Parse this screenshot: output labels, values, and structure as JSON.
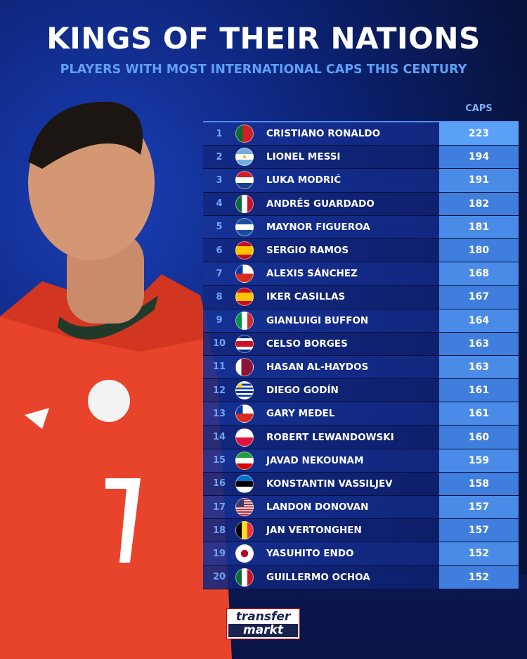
{
  "header": {
    "title": "KINGS OF THEIR NATIONS",
    "subtitle": "PLAYERS WITH MOST INTERNATIONAL CAPS THIS CENTURY"
  },
  "logo": {
    "line1": "transfer",
    "line2": "markt"
  },
  "colors": {
    "accent": "#5fa0f5",
    "caps_cell": "#4b8be8",
    "row_bg": "#16328f"
  },
  "chart_data": {
    "type": "table",
    "columns": [
      "",
      "",
      "",
      "CAPS"
    ],
    "caps_header": "CAPS",
    "rows": [
      {
        "rank": "1",
        "flag": "portugal",
        "name": "CRISTIANO RONALDO",
        "caps": "223"
      },
      {
        "rank": "2",
        "flag": "argentina",
        "name": "LIONEL MESSI",
        "caps": "194"
      },
      {
        "rank": "3",
        "flag": "croatia",
        "name": "LUKA MODRIĆ",
        "caps": "191"
      },
      {
        "rank": "4",
        "flag": "mexico",
        "name": "ANDRÉS GUARDADO",
        "caps": "182"
      },
      {
        "rank": "5",
        "flag": "honduras",
        "name": "MAYNOR FIGUEROA",
        "caps": "181"
      },
      {
        "rank": "6",
        "flag": "spain",
        "name": "SERGIO RAMOS",
        "caps": "180"
      },
      {
        "rank": "7",
        "flag": "chile",
        "name": "ALEXIS SÁNCHEZ",
        "caps": "168"
      },
      {
        "rank": "8",
        "flag": "spain",
        "name": "IKER CASILLAS",
        "caps": "167"
      },
      {
        "rank": "9",
        "flag": "italy",
        "name": "GIANLUIGI BUFFON",
        "caps": "164"
      },
      {
        "rank": "10",
        "flag": "costarica",
        "name": "CELSO BORGES",
        "caps": "163"
      },
      {
        "rank": "11",
        "flag": "qatar",
        "name": "HASAN AL-HAYDOS",
        "caps": "163"
      },
      {
        "rank": "12",
        "flag": "uruguay",
        "name": "DIEGO GODÍN",
        "caps": "161"
      },
      {
        "rank": "13",
        "flag": "chile",
        "name": "GARY MEDEL",
        "caps": "161"
      },
      {
        "rank": "14",
        "flag": "poland",
        "name": "ROBERT LEWANDOWSKI",
        "caps": "160"
      },
      {
        "rank": "15",
        "flag": "iran",
        "name": "JAVAD NEKOUNAM",
        "caps": "159"
      },
      {
        "rank": "16",
        "flag": "estonia",
        "name": "KONSTANTIN VASSILJEV",
        "caps": "158"
      },
      {
        "rank": "17",
        "flag": "usa",
        "name": "LANDON DONOVAN",
        "caps": "157"
      },
      {
        "rank": "18",
        "flag": "belgium",
        "name": "JAN VERTONGHEN",
        "caps": "157"
      },
      {
        "rank": "19",
        "flag": "japan",
        "name": "YASUHITO ENDO",
        "caps": "152"
      },
      {
        "rank": "20",
        "flag": "mexico",
        "name": "GUILLERMO OCHOA",
        "caps": "152"
      }
    ]
  }
}
